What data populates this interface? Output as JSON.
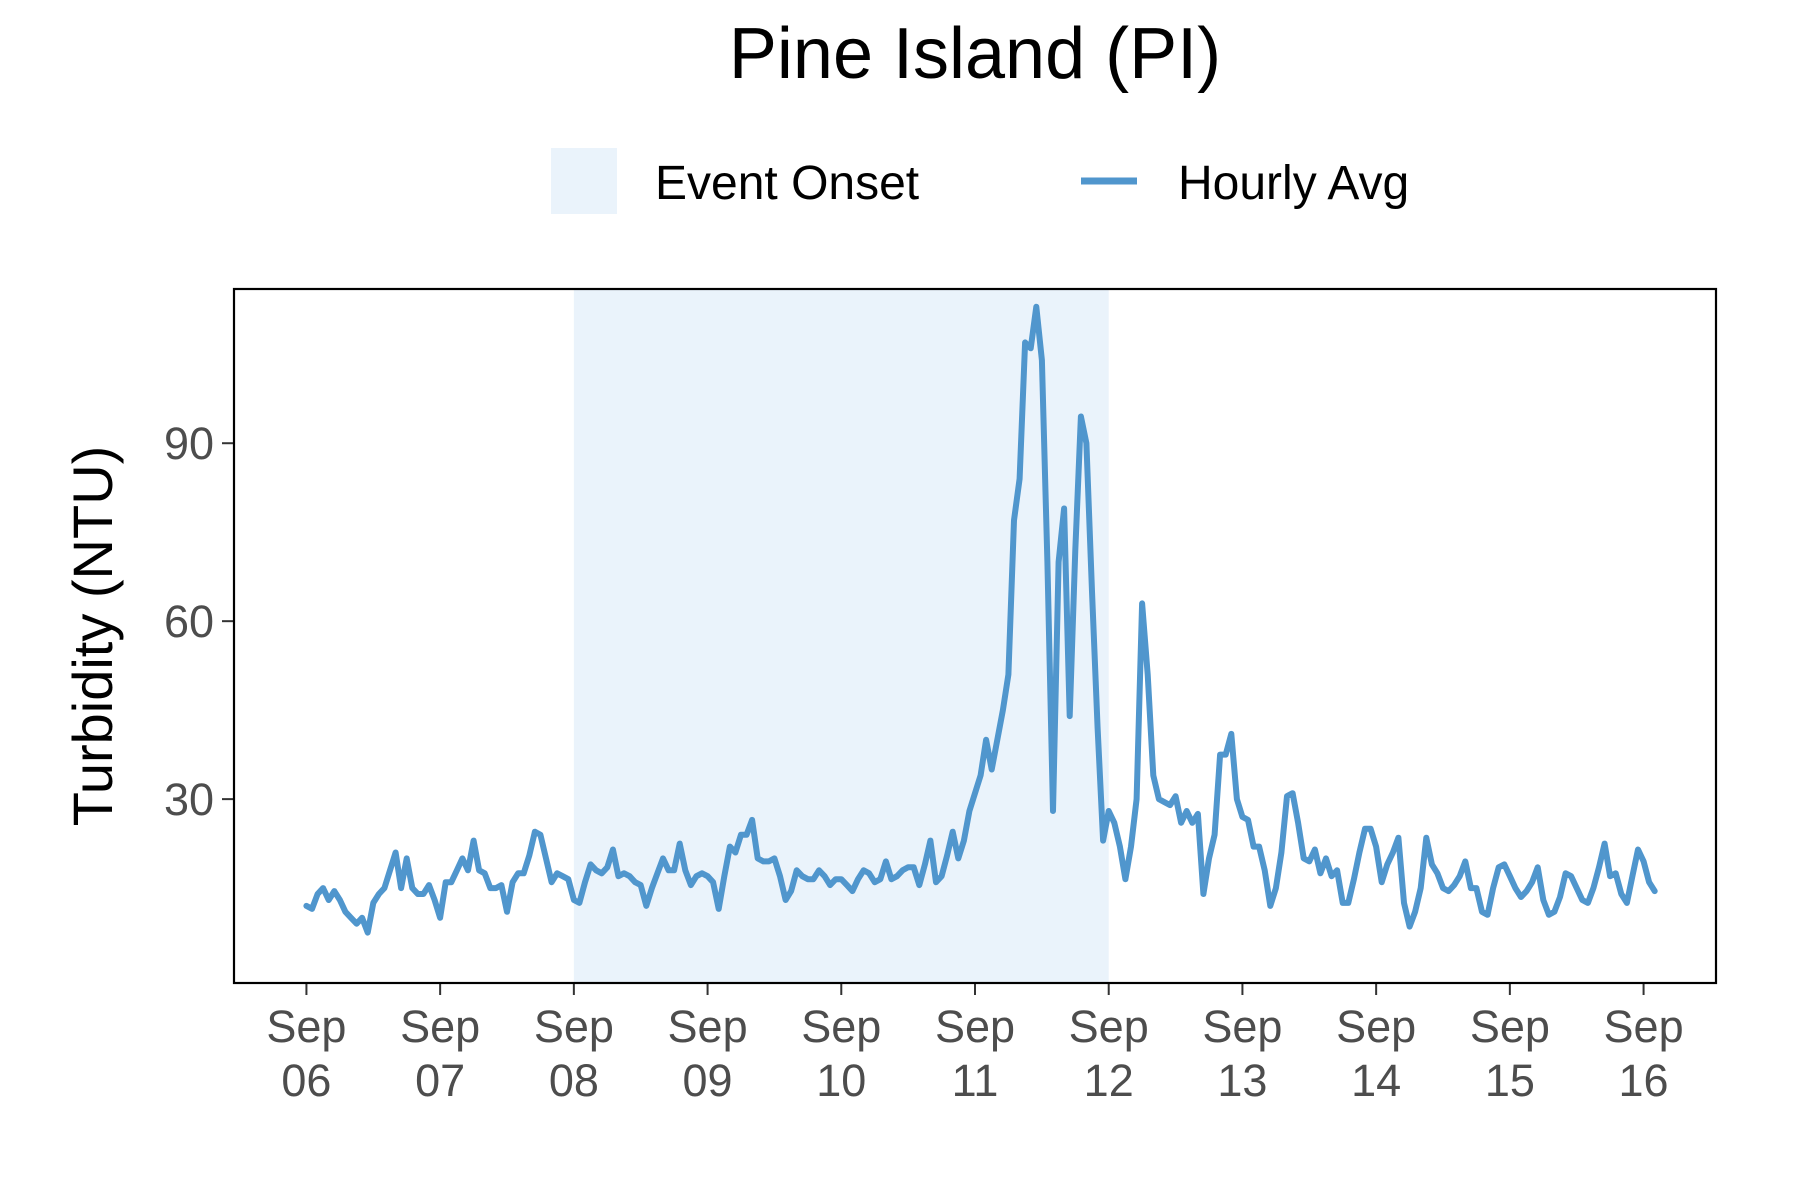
{
  "chart_data": {
    "type": "line",
    "title": "Pine Island (PI)",
    "xlabel": "",
    "ylabel": "Turbidity (NTU)",
    "ylim": [
      -1,
      116
    ],
    "xlim": [
      "2023-09-05T11:00",
      "2023-09-16T13:00"
    ],
    "grid": false,
    "legend_position": "top",
    "legend": {
      "event_label": "Event Onset",
      "series_label": "Hourly Avg"
    },
    "colors": {
      "series": "#5096cd",
      "event_fill": "#eaf3fb"
    },
    "y_ticks": [
      {
        "value": 30,
        "label": "30"
      },
      {
        "value": 60,
        "label": "60"
      },
      {
        "value": 90,
        "label": "90"
      }
    ],
    "x_ticks": [
      {
        "value": "2023-09-06",
        "line1": "Sep",
        "line2": "06"
      },
      {
        "value": "2023-09-07",
        "line1": "Sep",
        "line2": "07"
      },
      {
        "value": "2023-09-08",
        "line1": "Sep",
        "line2": "08"
      },
      {
        "value": "2023-09-09",
        "line1": "Sep",
        "line2": "09"
      },
      {
        "value": "2023-09-10",
        "line1": "Sep",
        "line2": "10"
      },
      {
        "value": "2023-09-11",
        "line1": "Sep",
        "line2": "11"
      },
      {
        "value": "2023-09-12",
        "line1": "Sep",
        "line2": "12"
      },
      {
        "value": "2023-09-13",
        "line1": "Sep",
        "line2": "13"
      },
      {
        "value": "2023-09-14",
        "line1": "Sep",
        "line2": "14"
      },
      {
        "value": "2023-09-15",
        "line1": "Sep",
        "line2": "15"
      },
      {
        "value": "2023-09-16",
        "line1": "Sep",
        "line2": "16"
      }
    ],
    "event_window": [
      "2023-09-08T00:00",
      "2023-09-12T00:00"
    ],
    "series": [
      {
        "name": "Hourly Avg",
        "points": [
          [
            "2023-09-06T00:00",
            12
          ],
          [
            "2023-09-06T01:00",
            11.5
          ],
          [
            "2023-09-06T02:00",
            14
          ],
          [
            "2023-09-06T03:00",
            15
          ],
          [
            "2023-09-06T04:00",
            13
          ],
          [
            "2023-09-06T05:00",
            14.5
          ],
          [
            "2023-09-06T06:00",
            13
          ],
          [
            "2023-09-06T07:00",
            11
          ],
          [
            "2023-09-06T08:00",
            10
          ],
          [
            "2023-09-06T09:00",
            9
          ],
          [
            "2023-09-06T10:00",
            10
          ],
          [
            "2023-09-06T11:00",
            7.5
          ],
          [
            "2023-09-06T12:00",
            12.5
          ],
          [
            "2023-09-06T13:00",
            14
          ],
          [
            "2023-09-06T14:00",
            15
          ],
          [
            "2023-09-06T15:00",
            18
          ],
          [
            "2023-09-06T16:00",
            21
          ],
          [
            "2023-09-06T17:00",
            15
          ],
          [
            "2023-09-06T18:00",
            20
          ],
          [
            "2023-09-06T19:00",
            15
          ],
          [
            "2023-09-06T20:00",
            14
          ],
          [
            "2023-09-06T21:00",
            14
          ],
          [
            "2023-09-06T22:00",
            15.5
          ],
          [
            "2023-09-06T23:00",
            13
          ],
          [
            "2023-09-07T00:00",
            10
          ],
          [
            "2023-09-07T01:00",
            16
          ],
          [
            "2023-09-07T02:00",
            16
          ],
          [
            "2023-09-07T03:00",
            18
          ],
          [
            "2023-09-07T04:00",
            20
          ],
          [
            "2023-09-07T05:00",
            18
          ],
          [
            "2023-09-07T06:00",
            23
          ],
          [
            "2023-09-07T07:00",
            18
          ],
          [
            "2023-09-07T08:00",
            17.5
          ],
          [
            "2023-09-07T09:00",
            15
          ],
          [
            "2023-09-07T10:00",
            15
          ],
          [
            "2023-09-07T11:00",
            15.5
          ],
          [
            "2023-09-07T12:00",
            11
          ],
          [
            "2023-09-07T13:00",
            16
          ],
          [
            "2023-09-07T14:00",
            17.5
          ],
          [
            "2023-09-07T15:00",
            17.5
          ],
          [
            "2023-09-07T16:00",
            20.5
          ],
          [
            "2023-09-07T17:00",
            24.5
          ],
          [
            "2023-09-07T18:00",
            24
          ],
          [
            "2023-09-07T19:00",
            20
          ],
          [
            "2023-09-07T20:00",
            16
          ],
          [
            "2023-09-07T21:00",
            17.5
          ],
          [
            "2023-09-07T22:00",
            17
          ],
          [
            "2023-09-07T23:00",
            16.5
          ],
          [
            "2023-09-08T00:00",
            13
          ],
          [
            "2023-09-08T01:00",
            12.5
          ],
          [
            "2023-09-08T02:00",
            16
          ],
          [
            "2023-09-08T03:00",
            19
          ],
          [
            "2023-09-08T04:00",
            18
          ],
          [
            "2023-09-08T05:00",
            17.5
          ],
          [
            "2023-09-08T06:00",
            18.5
          ],
          [
            "2023-09-08T07:00",
            21.5
          ],
          [
            "2023-09-08T08:00",
            17
          ],
          [
            "2023-09-08T09:00",
            17.5
          ],
          [
            "2023-09-08T10:00",
            17
          ],
          [
            "2023-09-08T11:00",
            16
          ],
          [
            "2023-09-08T12:00",
            15.5
          ],
          [
            "2023-09-08T13:00",
            12
          ],
          [
            "2023-09-08T14:00",
            15
          ],
          [
            "2023-09-08T15:00",
            17.5
          ],
          [
            "2023-09-08T16:00",
            20
          ],
          [
            "2023-09-08T17:00",
            18
          ],
          [
            "2023-09-08T18:00",
            18
          ],
          [
            "2023-09-08T19:00",
            22.5
          ],
          [
            "2023-09-08T20:00",
            18
          ],
          [
            "2023-09-08T21:00",
            15.5
          ],
          [
            "2023-09-08T22:00",
            17
          ],
          [
            "2023-09-08T23:00",
            17.5
          ],
          [
            "2023-09-09T00:00",
            17
          ],
          [
            "2023-09-09T01:00",
            16
          ],
          [
            "2023-09-09T02:00",
            11.5
          ],
          [
            "2023-09-09T03:00",
            17
          ],
          [
            "2023-09-09T04:00",
            22
          ],
          [
            "2023-09-09T05:00",
            21
          ],
          [
            "2023-09-09T06:00",
            24
          ],
          [
            "2023-09-09T07:00",
            24
          ],
          [
            "2023-09-09T08:00",
            26.5
          ],
          [
            "2023-09-09T09:00",
            20
          ],
          [
            "2023-09-09T10:00",
            19.5
          ],
          [
            "2023-09-09T11:00",
            19.5
          ],
          [
            "2023-09-09T12:00",
            20
          ],
          [
            "2023-09-09T13:00",
            17
          ],
          [
            "2023-09-09T14:00",
            13
          ],
          [
            "2023-09-09T15:00",
            14.5
          ],
          [
            "2023-09-09T16:00",
            18
          ],
          [
            "2023-09-09T17:00",
            17
          ],
          [
            "2023-09-09T18:00",
            16.5
          ],
          [
            "2023-09-09T19:00",
            16.5
          ],
          [
            "2023-09-09T20:00",
            18
          ],
          [
            "2023-09-09T21:00",
            17
          ],
          [
            "2023-09-09T22:00",
            15.5
          ],
          [
            "2023-09-09T23:00",
            16.5
          ],
          [
            "2023-09-10T00:00",
            16.5
          ],
          [
            "2023-09-10T01:00",
            15.5
          ],
          [
            "2023-09-10T02:00",
            14.5
          ],
          [
            "2023-09-10T03:00",
            16.5
          ],
          [
            "2023-09-10T04:00",
            18
          ],
          [
            "2023-09-10T05:00",
            17.5
          ],
          [
            "2023-09-10T06:00",
            16
          ],
          [
            "2023-09-10T07:00",
            16.5
          ],
          [
            "2023-09-10T08:00",
            19.5
          ],
          [
            "2023-09-10T09:00",
            16.5
          ],
          [
            "2023-09-10T10:00",
            17
          ],
          [
            "2023-09-10T11:00",
            18
          ],
          [
            "2023-09-10T12:00",
            18.5
          ],
          [
            "2023-09-10T13:00",
            18.5
          ],
          [
            "2023-09-10T14:00",
            15.5
          ],
          [
            "2023-09-10T15:00",
            19
          ],
          [
            "2023-09-10T16:00",
            23
          ],
          [
            "2023-09-10T17:00",
            16
          ],
          [
            "2023-09-10T18:00",
            17
          ],
          [
            "2023-09-10T19:00",
            20.5
          ],
          [
            "2023-09-10T20:00",
            24.5
          ],
          [
            "2023-09-10T21:00",
            20
          ],
          [
            "2023-09-10T22:00",
            23
          ],
          [
            "2023-09-10T23:00",
            28
          ],
          [
            "2023-09-11T00:00",
            31
          ],
          [
            "2023-09-11T01:00",
            34
          ],
          [
            "2023-09-11T02:00",
            40
          ],
          [
            "2023-09-11T03:00",
            35
          ],
          [
            "2023-09-11T04:00",
            40
          ],
          [
            "2023-09-11T05:00",
            45
          ],
          [
            "2023-09-11T06:00",
            51
          ],
          [
            "2023-09-11T07:00",
            77
          ],
          [
            "2023-09-11T08:00",
            84
          ],
          [
            "2023-09-11T09:00",
            107
          ],
          [
            "2023-09-11T10:00",
            106
          ],
          [
            "2023-09-11T11:00",
            113
          ],
          [
            "2023-09-11T12:00",
            104
          ],
          [
            "2023-09-11T13:00",
            70
          ],
          [
            "2023-09-11T14:00",
            28
          ],
          [
            "2023-09-11T15:00",
            70
          ],
          [
            "2023-09-11T16:00",
            79
          ],
          [
            "2023-09-11T17:00",
            44
          ],
          [
            "2023-09-11T18:00",
            72
          ],
          [
            "2023-09-11T19:00",
            94.5
          ],
          [
            "2023-09-11T20:00",
            90
          ],
          [
            "2023-09-11T21:00",
            65
          ],
          [
            "2023-09-11T22:00",
            42
          ],
          [
            "2023-09-11T23:00",
            23
          ],
          [
            "2023-09-12T00:00",
            28
          ],
          [
            "2023-09-12T01:00",
            26
          ],
          [
            "2023-09-12T02:00",
            22
          ],
          [
            "2023-09-12T03:00",
            16.5
          ],
          [
            "2023-09-12T04:00",
            22
          ],
          [
            "2023-09-12T05:00",
            30
          ],
          [
            "2023-09-12T06:00",
            63
          ],
          [
            "2023-09-12T07:00",
            51
          ],
          [
            "2023-09-12T08:00",
            34
          ],
          [
            "2023-09-12T09:00",
            30
          ],
          [
            "2023-09-12T10:00",
            29.5
          ],
          [
            "2023-09-12T11:00",
            29
          ],
          [
            "2023-09-12T12:00",
            30.5
          ],
          [
            "2023-09-12T13:00",
            26
          ],
          [
            "2023-09-12T14:00",
            28
          ],
          [
            "2023-09-12T15:00",
            26
          ],
          [
            "2023-09-12T16:00",
            27.5
          ],
          [
            "2023-09-12T17:00",
            14
          ],
          [
            "2023-09-12T18:00",
            20
          ],
          [
            "2023-09-12T19:00",
            24
          ],
          [
            "2023-09-12T20:00",
            37.5
          ],
          [
            "2023-09-12T21:00",
            37.5
          ],
          [
            "2023-09-12T22:00",
            41
          ],
          [
            "2023-09-12T23:00",
            30
          ],
          [
            "2023-09-13T00:00",
            27
          ],
          [
            "2023-09-13T01:00",
            26.5
          ],
          [
            "2023-09-13T02:00",
            22
          ],
          [
            "2023-09-13T03:00",
            22
          ],
          [
            "2023-09-13T04:00",
            18
          ],
          [
            "2023-09-13T05:00",
            12
          ],
          [
            "2023-09-13T06:00",
            15
          ],
          [
            "2023-09-13T07:00",
            21
          ],
          [
            "2023-09-13T08:00",
            30.5
          ],
          [
            "2023-09-13T09:00",
            31
          ],
          [
            "2023-09-13T10:00",
            26
          ],
          [
            "2023-09-13T11:00",
            20
          ],
          [
            "2023-09-13T12:00",
            19.5
          ],
          [
            "2023-09-13T13:00",
            21.5
          ],
          [
            "2023-09-13T14:00",
            17.5
          ],
          [
            "2023-09-13T15:00",
            20
          ],
          [
            "2023-09-13T16:00",
            17
          ],
          [
            "2023-09-13T17:00",
            18
          ],
          [
            "2023-09-13T18:00",
            12.5
          ],
          [
            "2023-09-13T19:00",
            12.5
          ],
          [
            "2023-09-13T20:00",
            16.5
          ],
          [
            "2023-09-13T21:00",
            21
          ],
          [
            "2023-09-13T22:00",
            25
          ],
          [
            "2023-09-13T23:00",
            25
          ],
          [
            "2023-09-14T00:00",
            22
          ],
          [
            "2023-09-14T01:00",
            16
          ],
          [
            "2023-09-14T02:00",
            19
          ],
          [
            "2023-09-14T03:00",
            21
          ],
          [
            "2023-09-14T04:00",
            23.5
          ],
          [
            "2023-09-14T05:00",
            12.5
          ],
          [
            "2023-09-14T06:00",
            8.5
          ],
          [
            "2023-09-14T07:00",
            11
          ],
          [
            "2023-09-14T08:00",
            15
          ],
          [
            "2023-09-14T09:00",
            23.5
          ],
          [
            "2023-09-14T10:00",
            19
          ],
          [
            "2023-09-14T11:00",
            17.5
          ],
          [
            "2023-09-14T12:00",
            15
          ],
          [
            "2023-09-14T13:00",
            14.5
          ],
          [
            "2023-09-14T14:00",
            15.5
          ],
          [
            "2023-09-14T15:00",
            17
          ],
          [
            "2023-09-14T16:00",
            19.5
          ],
          [
            "2023-09-14T17:00",
            15
          ],
          [
            "2023-09-14T18:00",
            15
          ],
          [
            "2023-09-14T19:00",
            11
          ],
          [
            "2023-09-14T20:00",
            10.5
          ],
          [
            "2023-09-14T21:00",
            15
          ],
          [
            "2023-09-14T22:00",
            18.5
          ],
          [
            "2023-09-14T23:00",
            19
          ],
          [
            "2023-09-15T00:00",
            17
          ],
          [
            "2023-09-15T01:00",
            15
          ],
          [
            "2023-09-15T02:00",
            13.5
          ],
          [
            "2023-09-15T03:00",
            14.5
          ],
          [
            "2023-09-15T04:00",
            16
          ],
          [
            "2023-09-15T05:00",
            18.5
          ],
          [
            "2023-09-15T06:00",
            13
          ],
          [
            "2023-09-15T07:00",
            10.5
          ],
          [
            "2023-09-15T08:00",
            11
          ],
          [
            "2023-09-15T09:00",
            13.5
          ],
          [
            "2023-09-15T10:00",
            17.5
          ],
          [
            "2023-09-15T11:00",
            17
          ],
          [
            "2023-09-15T12:00",
            15
          ],
          [
            "2023-09-15T13:00",
            13
          ],
          [
            "2023-09-15T14:00",
            12.5
          ],
          [
            "2023-09-15T15:00",
            15
          ],
          [
            "2023-09-15T16:00",
            18.5
          ],
          [
            "2023-09-15T17:00",
            22.5
          ],
          [
            "2023-09-15T18:00",
            17
          ],
          [
            "2023-09-15T19:00",
            17.5
          ],
          [
            "2023-09-15T20:00",
            14
          ],
          [
            "2023-09-15T21:00",
            12.5
          ],
          [
            "2023-09-15T22:00",
            17
          ],
          [
            "2023-09-15T23:00",
            21.5
          ],
          [
            "2023-09-16T00:00",
            19.5
          ],
          [
            "2023-09-16T01:00",
            16
          ],
          [
            "2023-09-16T02:00",
            14.5
          ]
        ]
      }
    ]
  }
}
